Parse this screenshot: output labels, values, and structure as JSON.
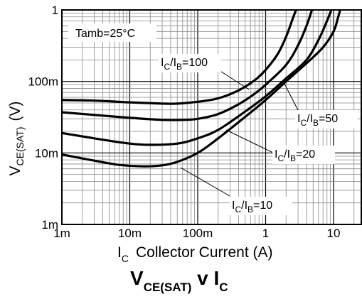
{
  "chart_data": {
    "type": "line",
    "title": {
      "main": "V",
      "main_sub": "CE(SAT)",
      "mid": " v I",
      "mid_sub": "C"
    },
    "xlabel": {
      "symbol": "I",
      "symbol_sub": "C",
      "text": "Collector Current (A)"
    },
    "ylabel": {
      "symbol": "V",
      "symbol_sub": "CE(SAT)",
      "unit": "(V)"
    },
    "x_scale": "log",
    "y_scale": "log",
    "xlim": [
      0.001,
      20
    ],
    "ylim": [
      0.001,
      1
    ],
    "x_ticks": [
      {
        "value": 0.001,
        "label": "1m"
      },
      {
        "value": 0.01,
        "label": "10m"
      },
      {
        "value": 0.1,
        "label": "100m"
      },
      {
        "value": 1,
        "label": "1"
      },
      {
        "value": 10,
        "label": "10"
      }
    ],
    "y_ticks": [
      {
        "value": 0.001,
        "label": "1m"
      },
      {
        "value": 0.01,
        "label": "10m"
      },
      {
        "value": 0.1,
        "label": "100m"
      },
      {
        "value": 1,
        "label": "1"
      }
    ],
    "grid": true,
    "condition_label": "Tamb=25°C",
    "series": [
      {
        "ratio": "100",
        "points": [
          [
            0.001,
            0.055
          ],
          [
            0.003,
            0.054
          ],
          [
            0.01,
            0.051
          ],
          [
            0.03,
            0.049
          ],
          [
            0.05,
            0.049
          ],
          [
            0.1,
            0.052
          ],
          [
            0.2,
            0.058
          ],
          [
            0.4,
            0.075
          ],
          [
            0.7,
            0.105
          ],
          [
            1.0,
            0.145
          ],
          [
            1.5,
            0.24
          ],
          [
            2.0,
            0.42
          ],
          [
            2.5,
            0.75
          ],
          [
            2.8,
            1.0
          ]
        ]
      },
      {
        "ratio": "50",
        "points": [
          [
            0.001,
            0.037
          ],
          [
            0.003,
            0.034
          ],
          [
            0.01,
            0.031
          ],
          [
            0.03,
            0.029
          ],
          [
            0.06,
            0.029
          ],
          [
            0.1,
            0.03
          ],
          [
            0.2,
            0.035
          ],
          [
            0.4,
            0.048
          ],
          [
            0.7,
            0.068
          ],
          [
            1.0,
            0.09
          ],
          [
            2.0,
            0.17
          ],
          [
            3.0,
            0.32
          ],
          [
            4.0,
            0.6
          ],
          [
            4.8,
            1.0
          ]
        ]
      },
      {
        "ratio": "20",
        "points": [
          [
            0.001,
            0.019
          ],
          [
            0.003,
            0.016
          ],
          [
            0.01,
            0.0135
          ],
          [
            0.02,
            0.013
          ],
          [
            0.05,
            0.0135
          ],
          [
            0.1,
            0.016
          ],
          [
            0.2,
            0.021
          ],
          [
            0.5,
            0.038
          ],
          [
            1.0,
            0.062
          ],
          [
            2.0,
            0.11
          ],
          [
            4.0,
            0.2
          ],
          [
            6.0,
            0.38
          ],
          [
            8.0,
            0.7
          ],
          [
            9.3,
            1.0
          ]
        ]
      },
      {
        "ratio": "10",
        "points": [
          [
            0.001,
            0.0095
          ],
          [
            0.003,
            0.0078
          ],
          [
            0.007,
            0.0068
          ],
          [
            0.015,
            0.0065
          ],
          [
            0.03,
            0.0067
          ],
          [
            0.05,
            0.0075
          ],
          [
            0.1,
            0.01
          ],
          [
            0.2,
            0.016
          ],
          [
            0.5,
            0.032
          ],
          [
            1.0,
            0.055
          ],
          [
            2.0,
            0.1
          ],
          [
            4.0,
            0.18
          ],
          [
            7.0,
            0.3
          ],
          [
            10.0,
            0.5
          ],
          [
            11.5,
            0.75
          ],
          [
            12.5,
            1.0
          ]
        ]
      }
    ],
    "curve_labels": [
      {
        "prefix": "I",
        "sub1": "C",
        "mid": "/I",
        "sub2": "B",
        "value": "=100",
        "anchor_x": 0.2,
        "anchor_y": 0.058
      },
      {
        "prefix": "I",
        "sub1": "C",
        "mid": "/I",
        "sub2": "B",
        "value": "=50",
        "anchor_x": 1.3,
        "anchor_y": 0.12
      },
      {
        "prefix": "I",
        "sub1": "C",
        "mid": "/I",
        "sub2": "B",
        "value": "=20",
        "anchor_x": 0.5,
        "anchor_y": 0.038
      },
      {
        "prefix": "I",
        "sub1": "C",
        "mid": "/I",
        "sub2": "B",
        "value": "=10",
        "anchor_x": 0.05,
        "anchor_y": 0.0075
      }
    ]
  }
}
